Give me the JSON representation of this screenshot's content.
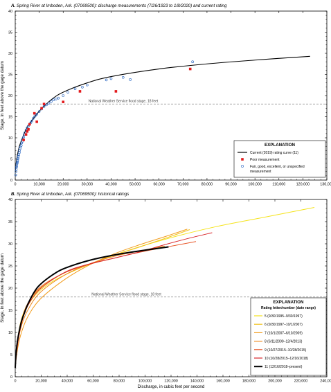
{
  "chart_data": [
    {
      "type": "scatter",
      "panel": "A",
      "title": "A. Spring River at Imboden, Ark. (07069500): discharge measurements (7/26/1923 to 1/8/2020) and current rating",
      "ylabel": "Stage, in feet above the gage datum",
      "xlabel": "",
      "xlim": [
        0,
        130000
      ],
      "ylim": [
        0,
        40
      ],
      "grid": false,
      "yticks": [
        "0",
        "5",
        "10",
        "15",
        "20",
        "25",
        "30",
        "35",
        "40"
      ],
      "xticks": [
        "0",
        "10,000",
        "20,000",
        "30,000",
        "40,000",
        "50,000",
        "60,000",
        "70,000",
        "80,000",
        "90,000",
        "100,000",
        "110,000",
        "120,000",
        "130,000"
      ],
      "flood_stage": {
        "y": 18,
        "label": "National Weather Service flood stage, 18 feet"
      },
      "legend": {
        "title": "EXPLANATION",
        "placement": "bottom-right",
        "items": [
          {
            "label": "Current (2019) rating curve (11)",
            "kind": "line",
            "color": "#000000"
          },
          {
            "label": "Poor measurement",
            "kind": "square",
            "color": "#e31a1c"
          },
          {
            "label": "Fair, good, excellent, or unspecified",
            "label2": "measurement",
            "kind": "circle",
            "color": "#1f5fbf"
          }
        ]
      },
      "rating_curve": {
        "name": "Current (2019) rating curve (11)",
        "color": "#000000",
        "x": [
          0,
          500,
          1500,
          3000,
          5000,
          7500,
          10000,
          15000,
          20000,
          30000,
          40000,
          60000,
          80000,
          100000,
          123000
        ],
        "y": [
          2.0,
          4.5,
          7.5,
          10.0,
          12.5,
          14.5,
          16.3,
          19.0,
          20.8,
          23.0,
          24.5,
          26.3,
          27.5,
          28.4,
          29.3
        ]
      },
      "series": [
        {
          "name": "Fair, good, excellent, or unspecified measurement",
          "marker": "circle",
          "color": "#1f5fbf",
          "x": [
            200,
            300,
            400,
            500,
            600,
            700,
            800,
            900,
            1000,
            1100,
            1200,
            1300,
            1500,
            1700,
            1800,
            2000,
            2200,
            2500,
            2700,
            3000,
            3200,
            3500,
            3800,
            4000,
            4500,
            5000,
            5500,
            6000,
            6500,
            7000,
            7500,
            8000,
            8500,
            9000,
            10000,
            11000,
            12000,
            13000,
            14000,
            15000,
            16000,
            17000,
            18000,
            20000,
            22000,
            25000,
            28000,
            30000,
            38000,
            40000,
            45000,
            48000,
            74000
          ],
          "y": [
            1.2,
            2.0,
            2.5,
            3.0,
            3.3,
            3.8,
            4.0,
            4.3,
            4.6,
            5.0,
            5.2,
            5.6,
            6.0,
            6.5,
            7.0,
            7.4,
            7.8,
            8.2,
            8.8,
            9.2,
            9.8,
            10.2,
            10.8,
            11.2,
            11.8,
            12.4,
            12.8,
            13.2,
            13.6,
            14.0,
            14.6,
            15.0,
            15.3,
            15.6,
            16.2,
            16.8,
            17.4,
            17.8,
            18.2,
            18.6,
            19.0,
            19.2,
            19.4,
            20.0,
            20.8,
            21.6,
            22.0,
            22.5,
            23.7,
            24.0,
            24.3,
            23.8,
            28.0
          ]
        },
        {
          "name": "Poor measurement",
          "marker": "square",
          "color": "#e31a1c",
          "x": [
            3500,
            4500,
            5000,
            5500,
            6000,
            8000,
            9000,
            11000,
            12000,
            20000,
            27000,
            42000,
            73000
          ],
          "y": [
            9.5,
            10.8,
            11.5,
            12.0,
            13.2,
            15.8,
            13.8,
            17.0,
            18.0,
            18.5,
            21.0,
            21.0,
            26.3
          ]
        }
      ]
    },
    {
      "type": "line",
      "panel": "B",
      "title": "B. Spring River at Imboden, Ark. (07069500): historical ratings",
      "ylabel": "Stage, in feet above the gage datum",
      "xlabel": "Discharge, in cubic feet per second",
      "xlim": [
        0,
        250000
      ],
      "ylim": [
        0,
        40
      ],
      "grid": false,
      "yticks": [
        "0",
        "5",
        "10",
        "15",
        "20",
        "25",
        "30",
        "35",
        "40"
      ],
      "xticks": [
        "0",
        "20,000",
        "40,000",
        "60,000",
        "80,000",
        "100,000",
        "120,000",
        "140,000",
        "160,000",
        "180,000",
        "200,000",
        "220,000",
        "240,000"
      ],
      "flood_stage": {
        "y": 18,
        "label": "National Weather Service flood stage, 18 feet"
      },
      "legend": {
        "title": "EXPLANATION",
        "subtitle": "Rating letter/number (date range)",
        "placement": "bottom-right"
      },
      "series": [
        {
          "name": "5 (9/30/1995–9/30/1997)",
          "color": "#f5e31b",
          "width": 1.0,
          "x": [
            0,
            2000,
            5000,
            10000,
            20000,
            40000,
            80000,
            120000,
            160000,
            200000,
            240000
          ],
          "y": [
            2.5,
            8.0,
            12.5,
            16.0,
            19.5,
            23.0,
            27.5,
            31.0,
            33.8,
            36.0,
            38.2
          ]
        },
        {
          "name": "6 (9/30/1997–10/1/2007)",
          "color": "#f2c21a",
          "width": 1.0,
          "x": [
            0,
            2000,
            5000,
            10000,
            20000,
            40000,
            60000,
            80000,
            100000,
            120000,
            140000
          ],
          "y": [
            2.5,
            8.5,
            13.0,
            16.5,
            20.0,
            23.5,
            25.5,
            27.5,
            29.3,
            31.2,
            33.2
          ]
        },
        {
          "name": "7 (10/1/2007–6/10/2009)",
          "color": "#f29b1a",
          "width": 1.0,
          "x": [
            0,
            2000,
            5000,
            10000,
            20000,
            40000,
            60000,
            80000,
            100000,
            120000,
            138000
          ],
          "y": [
            2.3,
            6.5,
            10.0,
            13.5,
            17.5,
            22.0,
            25.3,
            27.8,
            29.8,
            31.6,
            33.3
          ]
        },
        {
          "name": "8 (6/11/2009–12/4/2013)",
          "color": "#ee8a1f",
          "width": 1.0,
          "x": [
            0,
            2000,
            5000,
            10000,
            20000,
            40000,
            60000,
            80000,
            100000,
            120000
          ],
          "y": [
            2.3,
            7.5,
            11.5,
            15.0,
            19.0,
            23.0,
            25.5,
            27.2,
            28.4,
            29.5
          ]
        },
        {
          "name": "9 (10/27/2015–10/28/2015)",
          "color": "#e8582a",
          "width": 1.0,
          "x": [
            0,
            2000,
            5000,
            10000,
            20000,
            40000,
            60000,
            80000,
            100000,
            120000,
            145000
          ],
          "y": [
            2.2,
            8.0,
            12.5,
            16.5,
            20.2,
            23.5,
            25.4,
            26.8,
            28.1,
            29.2,
            30.5
          ]
        },
        {
          "name": "10 (10/28/2015–12/16/2018)",
          "color": "#d9262a",
          "width": 1.0,
          "x": [
            0,
            2000,
            5000,
            10000,
            20000,
            40000,
            60000,
            80000,
            100000,
            120000,
            140000,
            158000
          ],
          "y": [
            2.2,
            7.5,
            12.0,
            16.0,
            19.8,
            23.6,
            25.5,
            26.8,
            28.2,
            29.8,
            31.3,
            32.5
          ]
        },
        {
          "name": "11 (12/16/2018–present)",
          "color": "#000000",
          "width": 2.0,
          "x": [
            0,
            500,
            1500,
            3000,
            5000,
            7500,
            10000,
            15000,
            20000,
            30000,
            40000,
            60000,
            80000,
            100000,
            123000
          ],
          "y": [
            2.0,
            4.5,
            7.5,
            10.0,
            12.5,
            14.5,
            16.3,
            19.0,
            20.8,
            23.0,
            24.5,
            26.3,
            27.5,
            28.4,
            29.3
          ]
        }
      ]
    }
  ]
}
